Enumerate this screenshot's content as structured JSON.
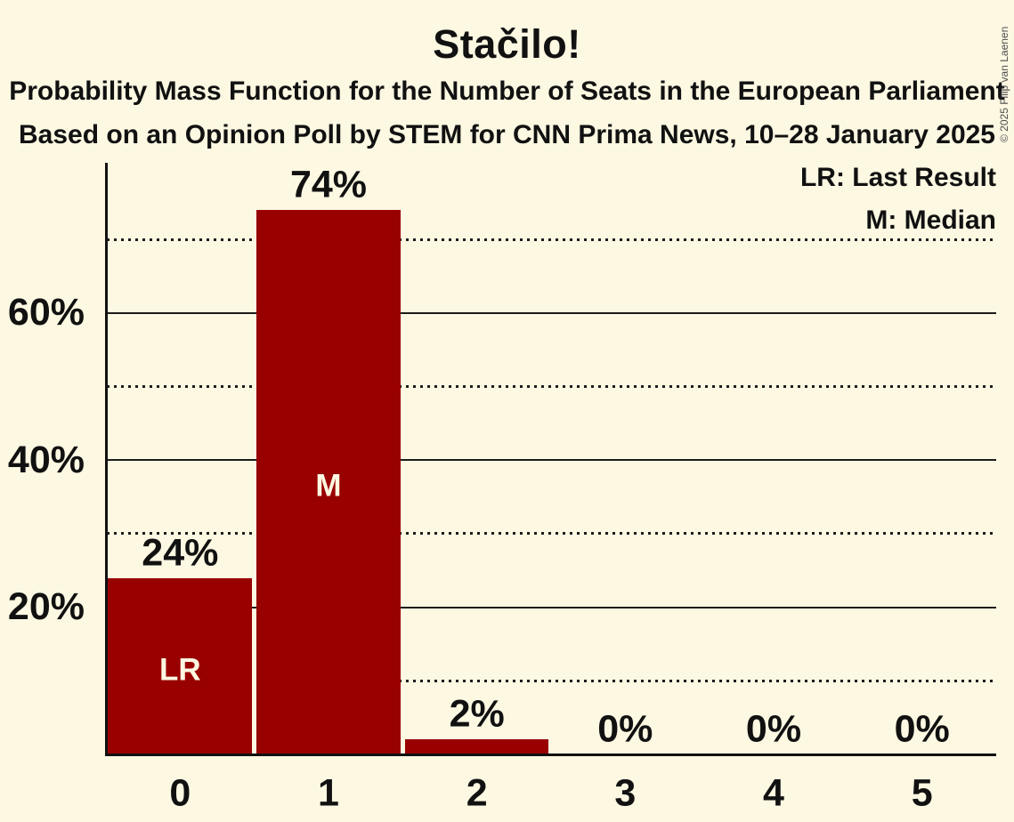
{
  "page": {
    "title": "Stačilo!",
    "subtitle1": "Probability Mass Function for the Number of Seats in the European Parliament",
    "subtitle2": "Based on an Opinion Poll by STEM for CNN Prima News, 10–28 January 2025",
    "copyright": "© 2025 Filip van Laenen"
  },
  "legend": {
    "last_result": "LR: Last Result",
    "median": "M: Median"
  },
  "colors": {
    "background": "#fcf8e2",
    "bar": "#990000",
    "text": "#111111",
    "gridline": "#1c1c1c",
    "bar_label": "#fcf8e2",
    "copyright": "#4d4d4d"
  },
  "chart_data": {
    "type": "bar",
    "title": "Stačilo!",
    "subtitle": "Probability Mass Function for the Number of Seats in the European Parliament",
    "source_line": "Based on an Opinion Poll by STEM for CNN Prima News, 10–28 January 2025",
    "xlabel": "",
    "ylabel": "",
    "categories": [
      "0",
      "1",
      "2",
      "3",
      "4",
      "5"
    ],
    "values": [
      24,
      74,
      2,
      0,
      0,
      0
    ],
    "value_labels": [
      "24%",
      "74%",
      "2%",
      "0%",
      "0%",
      "0%"
    ],
    "bar_annotations": [
      "LR",
      "M",
      "",
      "",
      "",
      ""
    ],
    "y_axis": {
      "range": [
        0,
        80
      ],
      "major_ticks": [
        20,
        40,
        60
      ],
      "major_tick_labels": [
        "20%",
        "40%",
        "60%"
      ],
      "minor_ticks": [
        10,
        30,
        50,
        70
      ]
    },
    "grid": true,
    "legend_position": "top-right",
    "legend_entries": [
      {
        "abbr": "LR",
        "meaning": "Last Result"
      },
      {
        "abbr": "M",
        "meaning": "Median"
      }
    ]
  }
}
